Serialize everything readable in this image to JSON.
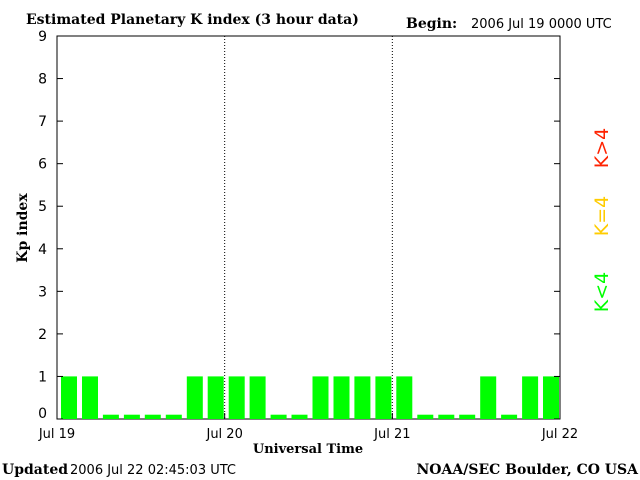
{
  "chart_data": {
    "type": "bar",
    "title": "Estimated Planetary K index (3 hour data)",
    "begin_label": "Begin:",
    "begin_value": "2006 Jul 19 0000 UTC",
    "ylabel": "Kp index",
    "xlabel": "Universal Time",
    "ylim": [
      0,
      9
    ],
    "yticks": [
      "0",
      "1",
      "2",
      "3",
      "4",
      "5",
      "6",
      "7",
      "8",
      "9"
    ],
    "xticks": [
      "Jul 19",
      "Jul 20",
      "Jul 21",
      "Jul 22"
    ],
    "day_dividers": [
      "Jul 20",
      "Jul 21"
    ],
    "interval_hours": 3,
    "values": [
      1,
      1,
      0,
      0,
      0,
      0,
      1,
      1,
      1,
      1,
      0,
      0,
      1,
      1,
      1,
      1,
      1,
      0,
      0,
      0,
      1,
      0,
      1,
      1
    ],
    "legend": [
      {
        "label": "K<4",
        "color": "#00ff00"
      },
      {
        "label": "K=4",
        "color": "#ffcc00"
      },
      {
        "label": "K>4",
        "color": "#ff2200"
      }
    ],
    "grid": false
  },
  "footer": {
    "updated_label": "Updated",
    "updated_value": "2006 Jul 22 02:45:03 UTC",
    "source": "NOAA/SEC Boulder, CO USA"
  }
}
